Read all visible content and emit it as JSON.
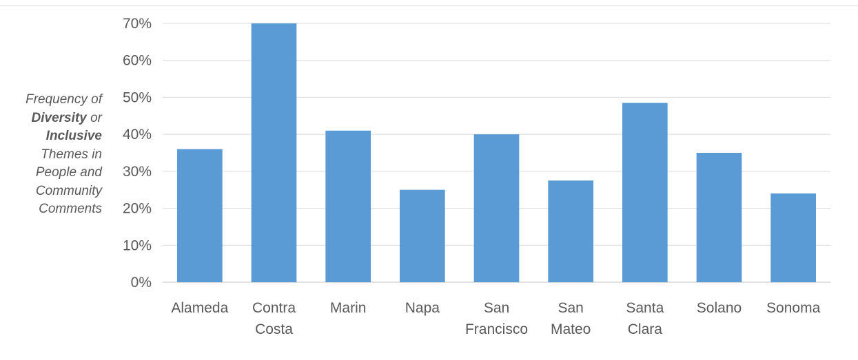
{
  "chart_data": {
    "type": "bar",
    "ylabel_lines": [
      {
        "parts": [
          {
            "text": "Frequency of",
            "bold": false
          }
        ]
      },
      {
        "parts": [
          {
            "text": "Diversity",
            "bold": true
          },
          {
            "text": " or",
            "bold": false
          }
        ]
      },
      {
        "parts": [
          {
            "text": "Inclusive",
            "bold": true
          }
        ]
      },
      {
        "parts": [
          {
            "text": "Themes in",
            "bold": false
          }
        ]
      },
      {
        "parts": [
          {
            "text": "People and",
            "bold": false
          }
        ]
      },
      {
        "parts": [
          {
            "text": "Community",
            "bold": false
          }
        ]
      },
      {
        "parts": [
          {
            "text": "Comments",
            "bold": false
          }
        ]
      }
    ],
    "categories": [
      [
        "Alameda"
      ],
      [
        "Contra",
        "Costa"
      ],
      [
        "Marin"
      ],
      [
        "Napa"
      ],
      [
        "San",
        "Francisco"
      ],
      [
        "San",
        "Mateo"
      ],
      [
        "Santa",
        "Clara"
      ],
      [
        "Solano"
      ],
      [
        "Sonoma"
      ]
    ],
    "values": [
      36,
      70,
      41,
      25,
      40,
      27.5,
      48.5,
      35,
      24
    ],
    "ylim": [
      0,
      70
    ],
    "yticks": [
      "0%",
      "10%",
      "20%",
      "30%",
      "40%",
      "50%",
      "60%",
      "70%"
    ],
    "ytick_values": [
      0,
      10,
      20,
      30,
      40,
      50,
      60,
      70
    ],
    "bar_color": "#5b9bd5",
    "grid": true,
    "legend": "none"
  }
}
